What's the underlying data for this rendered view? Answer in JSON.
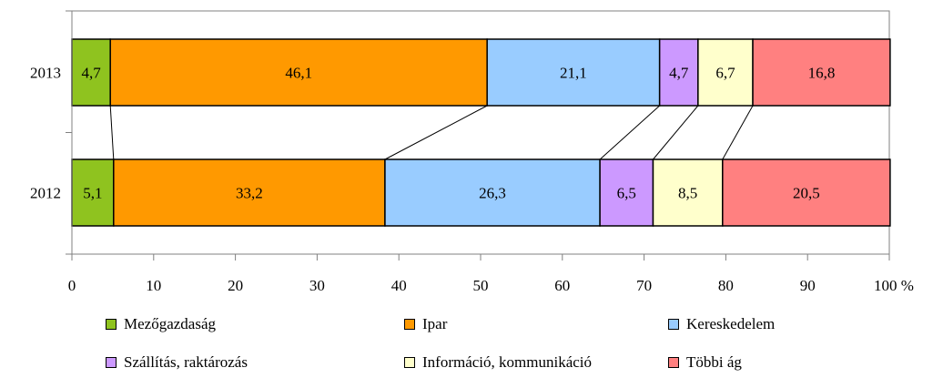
{
  "chart_data": {
    "type": "bar",
    "orientation": "horizontal",
    "stacked": true,
    "categories": [
      "2013",
      "2012"
    ],
    "series": [
      {
        "name": "Mezőgazdaság",
        "color": "#8fc31f",
        "values": [
          4.7,
          5.1
        ],
        "labels": [
          "4,7",
          "5,1"
        ]
      },
      {
        "name": "Ipar",
        "color": "#ff9900",
        "values": [
          46.1,
          33.2
        ],
        "labels": [
          "46,1",
          "33,2"
        ]
      },
      {
        "name": "Kereskedelem",
        "color": "#99ccff",
        "values": [
          21.1,
          26.3
        ],
        "labels": [
          "21,1",
          "26,3"
        ]
      },
      {
        "name": "Szállítás, raktározás",
        "color": "#cc99ff",
        "values": [
          4.7,
          6.5
        ],
        "labels": [
          "4,7",
          "6,5"
        ]
      },
      {
        "name": "Információ, kommunikáció",
        "color": "#ffffcc",
        "values": [
          6.7,
          8.5
        ],
        "labels": [
          "6,7",
          "8,5"
        ]
      },
      {
        "name": "Többi ág",
        "color": "#ff8080",
        "values": [
          16.8,
          20.5
        ],
        "labels": [
          "16,8",
          "20,5"
        ]
      }
    ],
    "xlim": [
      0,
      100
    ],
    "xticks": [
      "0",
      "10",
      "20",
      "30",
      "40",
      "50",
      "60",
      "70",
      "80",
      "90",
      "100 %"
    ],
    "series_lines": true,
    "legend_position": "bottom",
    "grid": false
  }
}
